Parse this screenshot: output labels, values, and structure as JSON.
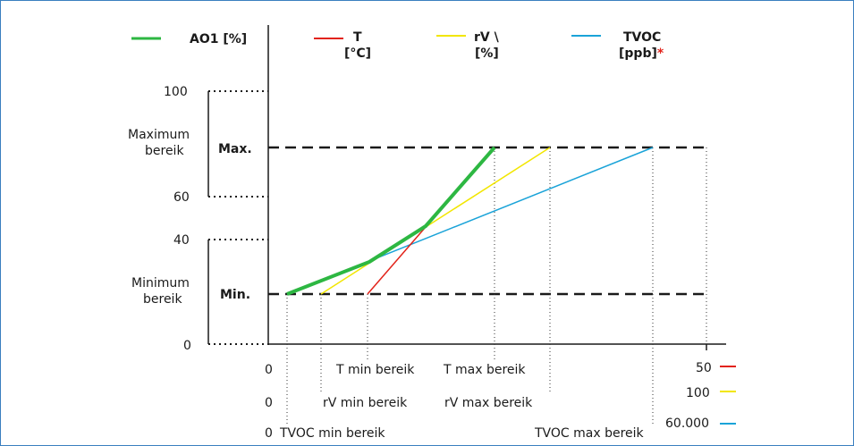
{
  "legend": [
    {
      "line1": "AO1 [%]",
      "line2": "",
      "color": "#2db742"
    },
    {
      "line1": "T",
      "line2": "[°C]",
      "color": "#e2231a"
    },
    {
      "line1": "rV \\",
      "line2": "[%]",
      "color": "#f2e600"
    },
    {
      "line1": "TVOC",
      "line2": "[ppb]",
      "color": "#1aa3d8",
      "mark": "*"
    }
  ],
  "y_axis": {
    "ticks": [
      "100",
      "60",
      "40",
      "0"
    ],
    "max_label": "Max.",
    "min_label": "Min.",
    "max_range_label": [
      "Maximum",
      "bereik"
    ],
    "min_range_label": [
      "Minimum",
      "bereik"
    ]
  },
  "x_axis": {
    "zero_labels": [
      "0",
      "0",
      "0"
    ],
    "t_min": "T min bereik",
    "t_max": "T max bereik",
    "rv_min": "rV min bereik",
    "rv_max": "rV max bereik",
    "tvoc_min": "TVOC min bereik",
    "tvoc_max": "TVOC max bereik"
  },
  "scale_ends": [
    {
      "value": "50",
      "color": "#e2231a"
    },
    {
      "value": "100",
      "color": "#f2e600"
    },
    {
      "value": "60.000",
      "color": "#1aa3d8"
    }
  ],
  "colors": {
    "ao1": "#2db742",
    "t": "#e2231a",
    "rv": "#f2e600",
    "tvoc": "#1aa3d8",
    "axis": "#1a1a1a"
  }
}
